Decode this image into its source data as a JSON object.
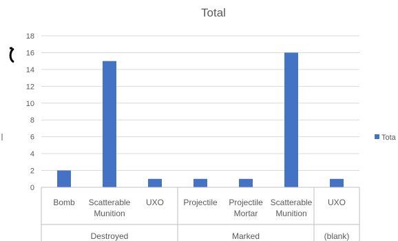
{
  "chart_data": {
    "type": "bar",
    "title": "Total",
    "xlabel": "",
    "ylabel": "",
    "ylim": [
      0,
      18
    ],
    "yticks": [
      0,
      2,
      4,
      6,
      8,
      10,
      12,
      14,
      16,
      18
    ],
    "grid": true,
    "legend_position": "right",
    "legend_label": "Tota",
    "bar_color": "#4472C4",
    "groups": [
      {
        "label": "Destroyed",
        "categories": [
          "Bomb",
          "Scatterable Munition",
          "UXO"
        ]
      },
      {
        "label": "Marked",
        "categories": [
          "Projectile",
          "Projectile Mortar",
          "Scatterable Munition"
        ]
      },
      {
        "label": "(blank)",
        "categories": [
          "UXO"
        ]
      }
    ],
    "categories": [
      [
        "Bomb"
      ],
      [
        "Scatterable",
        "Munition"
      ],
      [
        "UXO"
      ],
      [
        "Projectile"
      ],
      [
        "Projectile",
        "Mortar"
      ],
      [
        "Scatterable",
        "Munition"
      ],
      [
        "UXO"
      ]
    ],
    "series": [
      {
        "name": "Total",
        "values": [
          2,
          15,
          1,
          1,
          1,
          16,
          1
        ]
      }
    ]
  }
}
